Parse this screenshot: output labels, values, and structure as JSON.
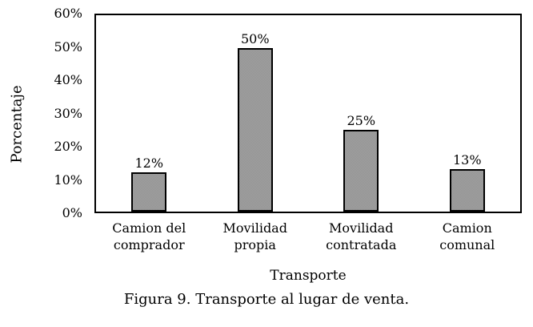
{
  "chart_data": {
    "type": "bar",
    "title": "",
    "categories": [
      [
        "Camion del",
        "comprador"
      ],
      [
        "Movilidad",
        "propia"
      ],
      [
        "Movilidad",
        "contratada"
      ],
      [
        "Camion",
        "comunal"
      ]
    ],
    "values": [
      12,
      50,
      25,
      13
    ],
    "data_labels": [
      "12%",
      "50%",
      "25%",
      "13%"
    ],
    "xlabel": "Transporte",
    "ylabel": "Porcentaje",
    "ylim": [
      0,
      60
    ],
    "ytick_step": 10,
    "ytick_labels": [
      "0%",
      "10%",
      "20%",
      "30%",
      "40%",
      "50%",
      "60%"
    ],
    "grid": false,
    "legend": false,
    "bar_fill_color": "#9a9a9a",
    "bar_border_color": "#000000",
    "frame_color": "#000000"
  },
  "caption": "Figura 9. Transporte al lugar de venta."
}
